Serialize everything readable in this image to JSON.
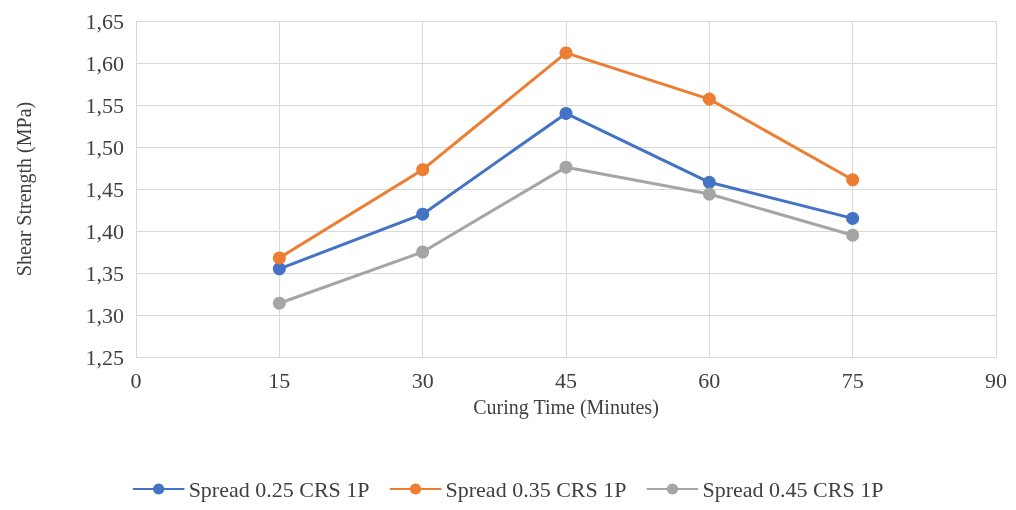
{
  "chart_data": {
    "type": "line",
    "xlabel": "Curing Time (Minutes)",
    "ylabel": "Shear Strength (MPa)",
    "x": [
      15,
      30,
      45,
      60,
      75
    ],
    "series": [
      {
        "name": "Spread 0.25 CRS 1P",
        "color": "#4472c4",
        "values": [
          1.355,
          1.42,
          1.54,
          1.458,
          1.415
        ]
      },
      {
        "name": "Spread 0.35 CRS 1P",
        "color": "#ed7d31",
        "values": [
          1.368,
          1.473,
          1.612,
          1.557,
          1.461
        ]
      },
      {
        "name": "Spread 0.45 CRS 1P",
        "color": "#a5a5a5",
        "values": [
          1.314,
          1.375,
          1.476,
          1.444,
          1.395
        ]
      }
    ],
    "xlim": [
      0,
      90
    ],
    "xticks": [
      0,
      15,
      30,
      45,
      60,
      75,
      90
    ],
    "ylim": [
      1.25,
      1.65
    ],
    "yticks": [
      {
        "value": 1.25,
        "label": "1,25"
      },
      {
        "value": 1.3,
        "label": "1,30"
      },
      {
        "value": 1.35,
        "label": "1,35"
      },
      {
        "value": 1.4,
        "label": "1,40"
      },
      {
        "value": 1.45,
        "label": "1,45"
      },
      {
        "value": 1.5,
        "label": "1,50"
      },
      {
        "value": 1.55,
        "label": "1,55"
      },
      {
        "value": 1.6,
        "label": "1,60"
      },
      {
        "value": 1.65,
        "label": "1,65"
      }
    ],
    "grid": true,
    "legend": "bottom",
    "marker": "circle",
    "line_style": "solid"
  }
}
